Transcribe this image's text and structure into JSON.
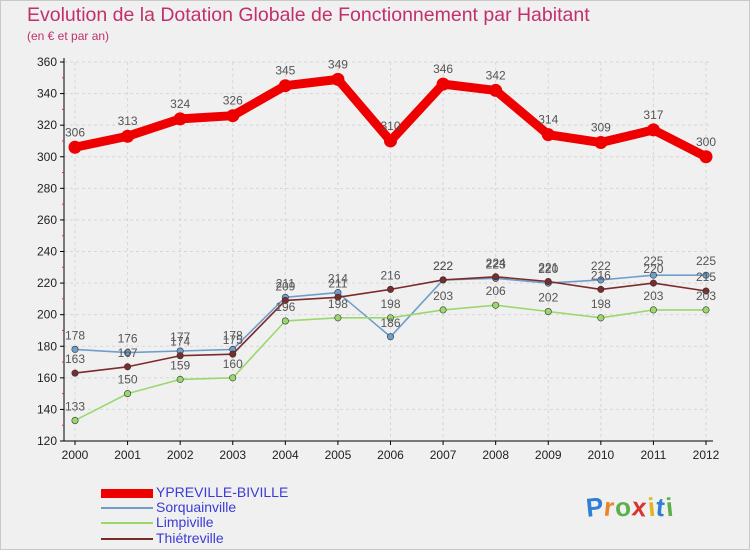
{
  "header": {
    "title": "Evolution de la Dotation Globale de Fonctionnement par Habitant",
    "subtitle": "(en € et par an)"
  },
  "logo": {
    "letters": [
      "P",
      "r",
      "o",
      "x",
      "i",
      "t",
      "i"
    ],
    "colors": [
      "#2f7fd2",
      "#e8842a",
      "#5ab04a",
      "#d8352f",
      "#e0b521",
      "#2f7fd2",
      "#5ab04a"
    ]
  },
  "chart_data": {
    "type": "line",
    "x": [
      "2000",
      "2001",
      "2002",
      "2003",
      "2004",
      "2005",
      "2006",
      "2007",
      "2008",
      "2009",
      "2010",
      "2011",
      "2012"
    ],
    "ylim": [
      120,
      360
    ],
    "yticks": [
      120,
      140,
      160,
      180,
      200,
      220,
      240,
      260,
      280,
      300,
      320,
      340,
      360
    ],
    "grid": true,
    "legend_position": "bottom-left",
    "series": [
      {
        "name": "YPREVILLE-BIVILLE",
        "color": "#ee0000",
        "values": [
          306,
          313,
          324,
          326,
          345,
          349,
          310,
          346,
          342,
          314,
          309,
          317,
          300
        ]
      },
      {
        "name": "Sorquainville",
        "color": "#6f9ecb",
        "values": [
          178,
          176,
          177,
          178,
          211,
          214,
          186,
          222,
          223,
          220,
          222,
          225,
          225
        ]
      },
      {
        "name": "Limpiville",
        "color": "#9ad86e",
        "values": [
          133,
          150,
          159,
          160,
          196,
          198,
          198,
          203,
          206,
          202,
          198,
          203,
          203
        ]
      },
      {
        "name": "Thiétreville",
        "color": "#7b2b2b",
        "values": [
          163,
          167,
          174,
          175,
          209,
          211,
          216,
          222,
          224,
          221,
          216,
          220,
          215
        ]
      }
    ]
  }
}
